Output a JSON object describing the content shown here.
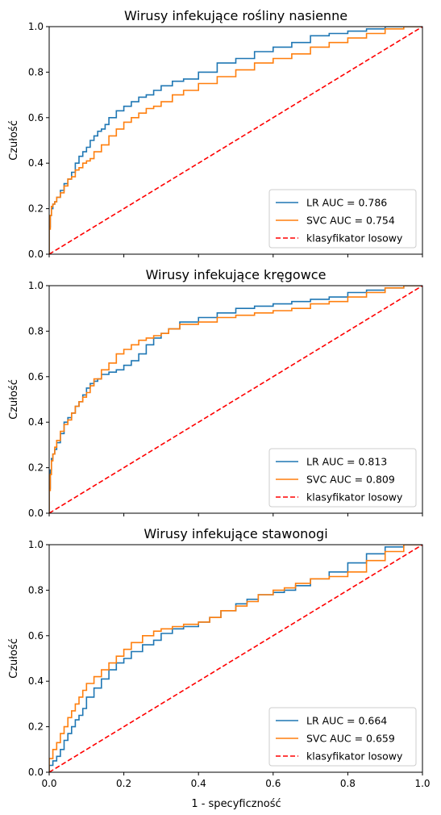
{
  "figure": {
    "xlabel": "1 - specyficzność"
  },
  "chart_data": [
    {
      "type": "line",
      "title": "Wirusy infekujące rośliny nasienne",
      "ylabel": "Czułość",
      "xlabel": "",
      "xlim": [
        0,
        1
      ],
      "ylim": [
        0,
        1
      ],
      "xticks": [
        "0.0",
        "0.2",
        "0.4",
        "0.6",
        "0.8",
        "1.0"
      ],
      "yticks": [
        "0.0",
        "0.2",
        "0.4",
        "0.6",
        "0.8",
        "1.0"
      ],
      "show_xtick_labels": false,
      "legend": {
        "placement": "bottom-right"
      },
      "series": [
        {
          "name": "LR  AUC = 0.786",
          "color": "#1f77b4",
          "style": "solid",
          "x": [
            0,
            0.003,
            0.006,
            0.01,
            0.015,
            0.02,
            0.03,
            0.04,
            0.05,
            0.06,
            0.07,
            0.08,
            0.09,
            0.1,
            0.11,
            0.12,
            0.13,
            0.14,
            0.15,
            0.16,
            0.18,
            0.2,
            0.22,
            0.24,
            0.26,
            0.28,
            0.3,
            0.33,
            0.36,
            0.4,
            0.45,
            0.5,
            0.55,
            0.6,
            0.65,
            0.7,
            0.75,
            0.8,
            0.85,
            0.9,
            0.95,
            1.0
          ],
          "y": [
            0,
            0.12,
            0.17,
            0.2,
            0.22,
            0.23,
            0.25,
            0.28,
            0.31,
            0.33,
            0.36,
            0.4,
            0.43,
            0.45,
            0.47,
            0.5,
            0.52,
            0.54,
            0.55,
            0.57,
            0.6,
            0.63,
            0.65,
            0.67,
            0.69,
            0.7,
            0.72,
            0.74,
            0.76,
            0.77,
            0.8,
            0.84,
            0.86,
            0.89,
            0.91,
            0.93,
            0.96,
            0.97,
            0.98,
            0.99,
            1.0,
            1.0
          ]
        },
        {
          "name": "SVC AUC = 0.754",
          "color": "#ff7f0e",
          "style": "solid",
          "x": [
            0,
            0.003,
            0.006,
            0.01,
            0.015,
            0.02,
            0.03,
            0.04,
            0.05,
            0.06,
            0.07,
            0.08,
            0.09,
            0.1,
            0.11,
            0.12,
            0.14,
            0.16,
            0.18,
            0.2,
            0.22,
            0.24,
            0.26,
            0.28,
            0.3,
            0.33,
            0.36,
            0.4,
            0.45,
            0.5,
            0.55,
            0.6,
            0.65,
            0.7,
            0.75,
            0.8,
            0.85,
            0.9,
            0.95,
            1.0
          ],
          "y": [
            0,
            0.11,
            0.17,
            0.21,
            0.22,
            0.23,
            0.25,
            0.27,
            0.3,
            0.33,
            0.34,
            0.37,
            0.38,
            0.4,
            0.41,
            0.42,
            0.45,
            0.48,
            0.52,
            0.55,
            0.58,
            0.6,
            0.62,
            0.64,
            0.65,
            0.67,
            0.7,
            0.72,
            0.75,
            0.78,
            0.81,
            0.84,
            0.86,
            0.88,
            0.91,
            0.93,
            0.95,
            0.97,
            0.99,
            1.0
          ]
        },
        {
          "name": "klasyfikator losowy",
          "color": "#ff0000",
          "style": "dashed",
          "x": [
            0,
            1
          ],
          "y": [
            0,
            1
          ]
        }
      ]
    },
    {
      "type": "line",
      "title": "Wirusy infekujące kręgowce",
      "ylabel": "Czułość",
      "xlabel": "",
      "xlim": [
        0,
        1
      ],
      "ylim": [
        0,
        1
      ],
      "xticks": [
        "0.0",
        "0.2",
        "0.4",
        "0.6",
        "0.8",
        "1.0"
      ],
      "yticks": [
        "0.0",
        "0.2",
        "0.4",
        "0.6",
        "0.8",
        "1.0"
      ],
      "show_xtick_labels": false,
      "legend": {
        "placement": "bottom-right"
      },
      "series": [
        {
          "name": "LR  AUC = 0.813",
          "color": "#1f77b4",
          "style": "solid",
          "x": [
            0,
            0.003,
            0.006,
            0.01,
            0.015,
            0.02,
            0.03,
            0.04,
            0.05,
            0.06,
            0.07,
            0.08,
            0.09,
            0.1,
            0.11,
            0.12,
            0.13,
            0.14,
            0.16,
            0.18,
            0.2,
            0.22,
            0.24,
            0.26,
            0.28,
            0.3,
            0.32,
            0.35,
            0.4,
            0.45,
            0.5,
            0.55,
            0.6,
            0.65,
            0.7,
            0.75,
            0.8,
            0.85,
            0.9,
            0.95,
            1.0
          ],
          "y": [
            0,
            0.11,
            0.19,
            0.24,
            0.26,
            0.28,
            0.31,
            0.35,
            0.4,
            0.42,
            0.44,
            0.47,
            0.49,
            0.52,
            0.55,
            0.57,
            0.58,
            0.59,
            0.61,
            0.62,
            0.63,
            0.65,
            0.67,
            0.7,
            0.74,
            0.77,
            0.79,
            0.81,
            0.84,
            0.86,
            0.88,
            0.9,
            0.91,
            0.92,
            0.93,
            0.94,
            0.95,
            0.97,
            0.98,
            0.99,
            1.0
          ]
        },
        {
          "name": "SVC AUC = 0.809",
          "color": "#ff7f0e",
          "style": "solid",
          "x": [
            0,
            0.003,
            0.006,
            0.01,
            0.015,
            0.02,
            0.03,
            0.04,
            0.05,
            0.06,
            0.07,
            0.08,
            0.09,
            0.1,
            0.11,
            0.12,
            0.14,
            0.16,
            0.18,
            0.2,
            0.22,
            0.24,
            0.26,
            0.28,
            0.3,
            0.32,
            0.35,
            0.4,
            0.45,
            0.5,
            0.55,
            0.6,
            0.65,
            0.7,
            0.75,
            0.8,
            0.85,
            0.9,
            0.95,
            1.0
          ],
          "y": [
            0,
            0.1,
            0.17,
            0.23,
            0.26,
            0.29,
            0.32,
            0.36,
            0.39,
            0.41,
            0.44,
            0.47,
            0.49,
            0.51,
            0.53,
            0.56,
            0.59,
            0.63,
            0.66,
            0.7,
            0.72,
            0.74,
            0.76,
            0.77,
            0.78,
            0.79,
            0.81,
            0.83,
            0.84,
            0.86,
            0.87,
            0.88,
            0.89,
            0.9,
            0.92,
            0.93,
            0.95,
            0.97,
            0.99,
            1.0
          ]
        },
        {
          "name": "klasyfikator losowy",
          "color": "#ff0000",
          "style": "dashed",
          "x": [
            0,
            1
          ],
          "y": [
            0,
            1
          ]
        }
      ]
    },
    {
      "type": "line",
      "title": "Wirusy infekujące stawonogi",
      "ylabel": "Czułość",
      "xlabel": "1 - specyficzność",
      "xlim": [
        0,
        1
      ],
      "ylim": [
        0,
        1
      ],
      "xticks": [
        "0.0",
        "0.2",
        "0.4",
        "0.6",
        "0.8",
        "1.0"
      ],
      "yticks": [
        "0.0",
        "0.2",
        "0.4",
        "0.6",
        "0.8",
        "1.0"
      ],
      "show_xtick_labels": true,
      "legend": {
        "placement": "bottom-right"
      },
      "series": [
        {
          "name": "LR  AUC = 0.664",
          "color": "#1f77b4",
          "style": "solid",
          "x": [
            0,
            0.01,
            0.02,
            0.03,
            0.04,
            0.05,
            0.06,
            0.07,
            0.08,
            0.09,
            0.1,
            0.12,
            0.14,
            0.16,
            0.18,
            0.2,
            0.22,
            0.25,
            0.28,
            0.3,
            0.33,
            0.36,
            0.4,
            0.43,
            0.46,
            0.5,
            0.53,
            0.56,
            0.6,
            0.63,
            0.66,
            0.7,
            0.75,
            0.8,
            0.85,
            0.9,
            0.95,
            1.0
          ],
          "y": [
            0,
            0.03,
            0.05,
            0.07,
            0.1,
            0.14,
            0.17,
            0.2,
            0.23,
            0.25,
            0.28,
            0.33,
            0.37,
            0.41,
            0.45,
            0.48,
            0.5,
            0.53,
            0.56,
            0.58,
            0.61,
            0.63,
            0.64,
            0.66,
            0.68,
            0.71,
            0.74,
            0.76,
            0.78,
            0.79,
            0.8,
            0.82,
            0.85,
            0.88,
            0.92,
            0.96,
            0.99,
            1.0
          ]
        },
        {
          "name": "SVC AUC = 0.659",
          "color": "#ff7f0e",
          "style": "solid",
          "x": [
            0,
            0.01,
            0.02,
            0.03,
            0.04,
            0.05,
            0.06,
            0.07,
            0.08,
            0.09,
            0.1,
            0.12,
            0.14,
            0.16,
            0.18,
            0.2,
            0.22,
            0.25,
            0.28,
            0.3,
            0.33,
            0.36,
            0.4,
            0.43,
            0.46,
            0.5,
            0.53,
            0.56,
            0.6,
            0.63,
            0.66,
            0.7,
            0.75,
            0.8,
            0.85,
            0.9,
            0.95,
            1.0
          ],
          "y": [
            0,
            0.06,
            0.1,
            0.13,
            0.17,
            0.2,
            0.24,
            0.27,
            0.3,
            0.33,
            0.36,
            0.39,
            0.42,
            0.45,
            0.48,
            0.51,
            0.54,
            0.57,
            0.6,
            0.62,
            0.63,
            0.64,
            0.65,
            0.66,
            0.68,
            0.71,
            0.73,
            0.75,
            0.78,
            0.8,
            0.81,
            0.83,
            0.85,
            0.86,
            0.88,
            0.93,
            0.97,
            1.0
          ]
        },
        {
          "name": "klasyfikator losowy",
          "color": "#ff0000",
          "style": "dashed",
          "x": [
            0,
            1
          ],
          "y": [
            0,
            1
          ]
        }
      ]
    }
  ]
}
